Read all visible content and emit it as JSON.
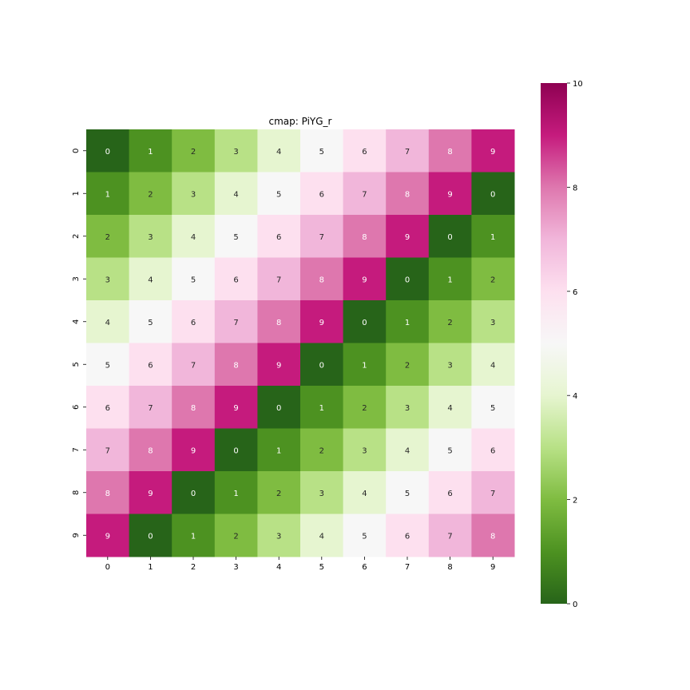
{
  "chart_data": {
    "type": "heatmap",
    "title": "cmap: PiYG_r",
    "colormap": "PiYG_r",
    "x_categories": [
      "0",
      "1",
      "2",
      "3",
      "4",
      "5",
      "6",
      "7",
      "8",
      "9"
    ],
    "y_categories": [
      "0",
      "1",
      "2",
      "3",
      "4",
      "5",
      "6",
      "7",
      "8",
      "9"
    ],
    "values": [
      [
        0,
        1,
        2,
        3,
        4,
        5,
        6,
        7,
        8,
        9
      ],
      [
        1,
        2,
        3,
        4,
        5,
        6,
        7,
        8,
        9,
        0
      ],
      [
        2,
        3,
        4,
        5,
        6,
        7,
        8,
        9,
        0,
        1
      ],
      [
        3,
        4,
        5,
        6,
        7,
        8,
        9,
        0,
        1,
        2
      ],
      [
        4,
        5,
        6,
        7,
        8,
        9,
        0,
        1,
        2,
        3
      ],
      [
        5,
        6,
        7,
        8,
        9,
        0,
        1,
        2,
        3,
        4
      ],
      [
        6,
        7,
        8,
        9,
        0,
        1,
        2,
        3,
        4,
        5
      ],
      [
        7,
        8,
        9,
        0,
        1,
        2,
        3,
        4,
        5,
        6
      ],
      [
        8,
        9,
        0,
        1,
        2,
        3,
        4,
        5,
        6,
        7
      ],
      [
        9,
        0,
        1,
        2,
        3,
        4,
        5,
        6,
        7,
        8
      ]
    ],
    "annotated": true,
    "colorbar": {
      "range": [
        0,
        10
      ],
      "ticks": [
        "0",
        "2",
        "4",
        "6",
        "8",
        "10"
      ]
    },
    "grid": false
  }
}
